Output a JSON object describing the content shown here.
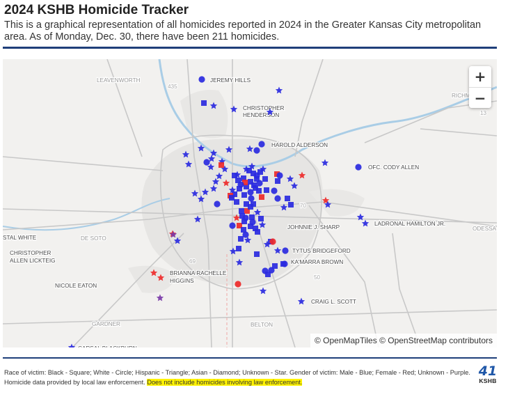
{
  "header": {
    "title": "2024 KSHB Homicide Tracker",
    "subtitle": "This is a graphical representation of all homicides reported in 2024 in the Greater Kansas City metropolitan area. As of Monday, Dec. 30, there have been 211 homicides."
  },
  "map": {
    "zoom_in_label": "+",
    "zoom_out_label": "−",
    "attribution": "© OpenMapTiles © OpenStreetMap contributors",
    "colors": {
      "male": "#2a2ae0",
      "female": "#ee2a2a",
      "unknown": "#7a3aa8",
      "water": "#a9cde6",
      "road": "#c9c9c9",
      "urban": "#e4e4e2"
    },
    "place_labels": [
      {
        "name": "place-leavenworth",
        "text": "LEAVENWORTH"
      },
      {
        "name": "place-richmond",
        "text": "RICHM"
      },
      {
        "name": "place-odessa",
        "text": "ODESSA"
      },
      {
        "name": "place-de-soto",
        "text": "DE SOTO"
      },
      {
        "name": "place-gardner",
        "text": "GARDNER"
      },
      {
        "name": "place-belton",
        "text": "BELTON"
      },
      {
        "name": "road-435",
        "text": "435"
      },
      {
        "name": "road-70",
        "text": "70"
      },
      {
        "name": "road-69",
        "text": "69"
      },
      {
        "name": "road-50",
        "text": "50"
      },
      {
        "name": "road-13",
        "text": "13"
      }
    ],
    "victim_labels": [
      {
        "name": "label-jeremy-hills",
        "text": "JEREMY HILLS"
      },
      {
        "name": "label-christopher-henderson-1",
        "text": "CHRISTOPHER"
      },
      {
        "name": "label-christopher-henderson-2",
        "text": "HENDERSON"
      },
      {
        "name": "label-harold-alderson",
        "text": "HAROLD ALDERSON"
      },
      {
        "name": "label-cody-allen",
        "text": "OFC. CODY ALLEN"
      },
      {
        "name": "label-ladronal-hamilton",
        "text": "LADRONAL HAMILTON JR."
      },
      {
        "name": "label-johnnie-sharp",
        "text": "JOHNNIE J. SHARP"
      },
      {
        "name": "label-tytus-bridgeford",
        "text": "TYTUS BRIDGEFORD"
      },
      {
        "name": "label-kamarra-brown",
        "text": "KA'MARRA BROWN"
      },
      {
        "name": "label-brianna-higgins-1",
        "text": "BRIANNA RACHELLE"
      },
      {
        "name": "label-brianna-higgins-2",
        "text": "HIGGINS"
      },
      {
        "name": "label-craig-scott",
        "text": "CRAIG L. SCOTT"
      },
      {
        "name": "label-nicole-eaton",
        "text": "NICOLE EATON"
      },
      {
        "name": "label-christopher-lickteig-1",
        "text": "CHRISTOPHER"
      },
      {
        "name": "label-christopher-lickteig-2",
        "text": "ALLEN LICKTEIG"
      },
      {
        "name": "label-white",
        "text": "STAL WHITE"
      },
      {
        "name": "label-bottom-cut",
        "text": "CARSAL BLACKBURN"
      }
    ]
  },
  "footer": {
    "legend_text": "Race of victim: Black - Square; White - Circle; Hispanic - Triangle; Asian - Diamond; Unknown - Star. Gender of victim: Male - Blue; Female - Red; Unknown - Purple.",
    "source_text": "Homicide data provided by local law enforcement.",
    "highlight_text": "Does not include homicides involving law enforcement.",
    "logo_number": "41",
    "logo_text": "KSHB"
  }
}
